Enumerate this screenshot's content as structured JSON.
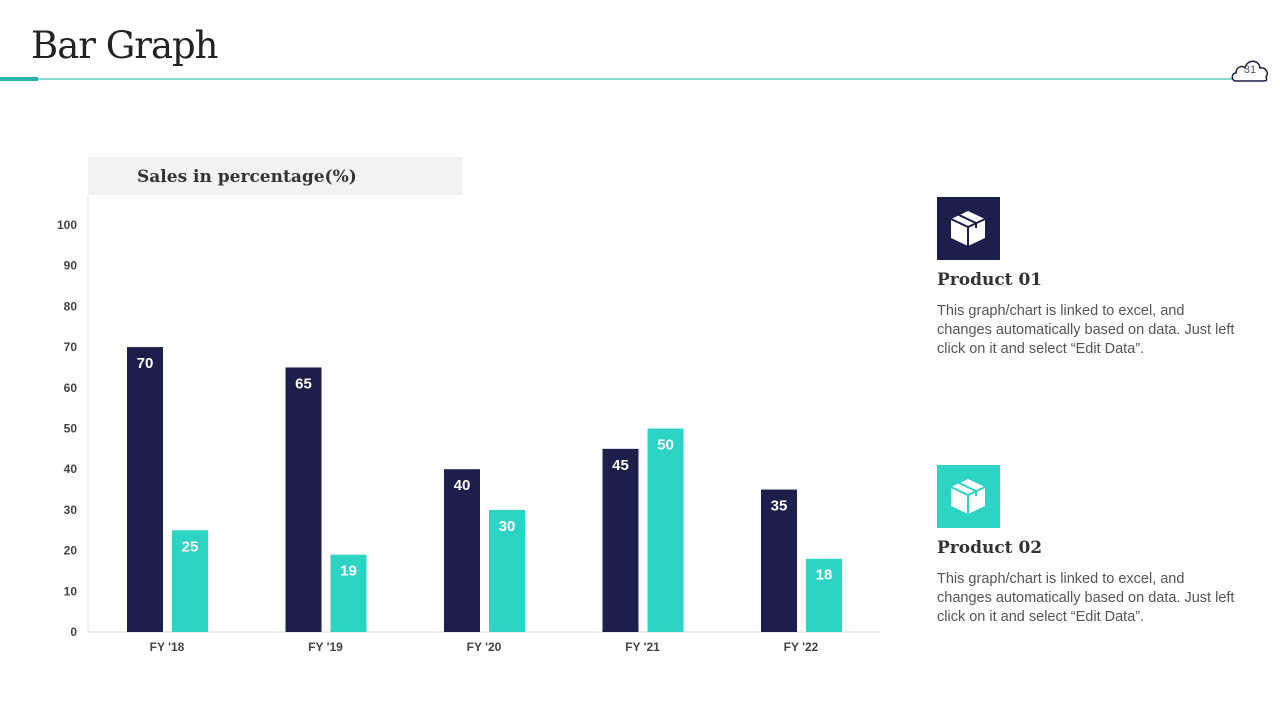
{
  "header": {
    "title": "Bar Graph",
    "page_number": "31"
  },
  "colors": {
    "series1": "#1b1f4a",
    "series2": "#2dd4c4",
    "accent": "#2bb5a8"
  },
  "chart_data": {
    "type": "bar",
    "title": "Sales in percentage(%)",
    "categories": [
      "FY '18",
      "FY '19",
      "FY '20",
      "FY '21",
      "FY '22"
    ],
    "series": [
      {
        "name": "Product 01",
        "values": [
          70,
          65,
          40,
          45,
          35
        ]
      },
      {
        "name": "Product 02",
        "values": [
          25,
          19,
          30,
          50,
          18
        ]
      }
    ],
    "ylim": [
      0,
      100
    ],
    "yticks": [
      0,
      10,
      20,
      30,
      40,
      50,
      60,
      70,
      80,
      90,
      100
    ],
    "grid": false,
    "data_labels": true
  },
  "legend": [
    {
      "title": "Product 01",
      "icon": "box-icon",
      "desc": "This graph/chart is linked to excel, and changes automatically based on data. Just left click on it and select “Edit Data”."
    },
    {
      "title": "Product 02",
      "icon": "box-icon",
      "desc": "This graph/chart is linked to excel, and changes automatically based on data. Just left click on it and select “Edit Data”."
    }
  ]
}
